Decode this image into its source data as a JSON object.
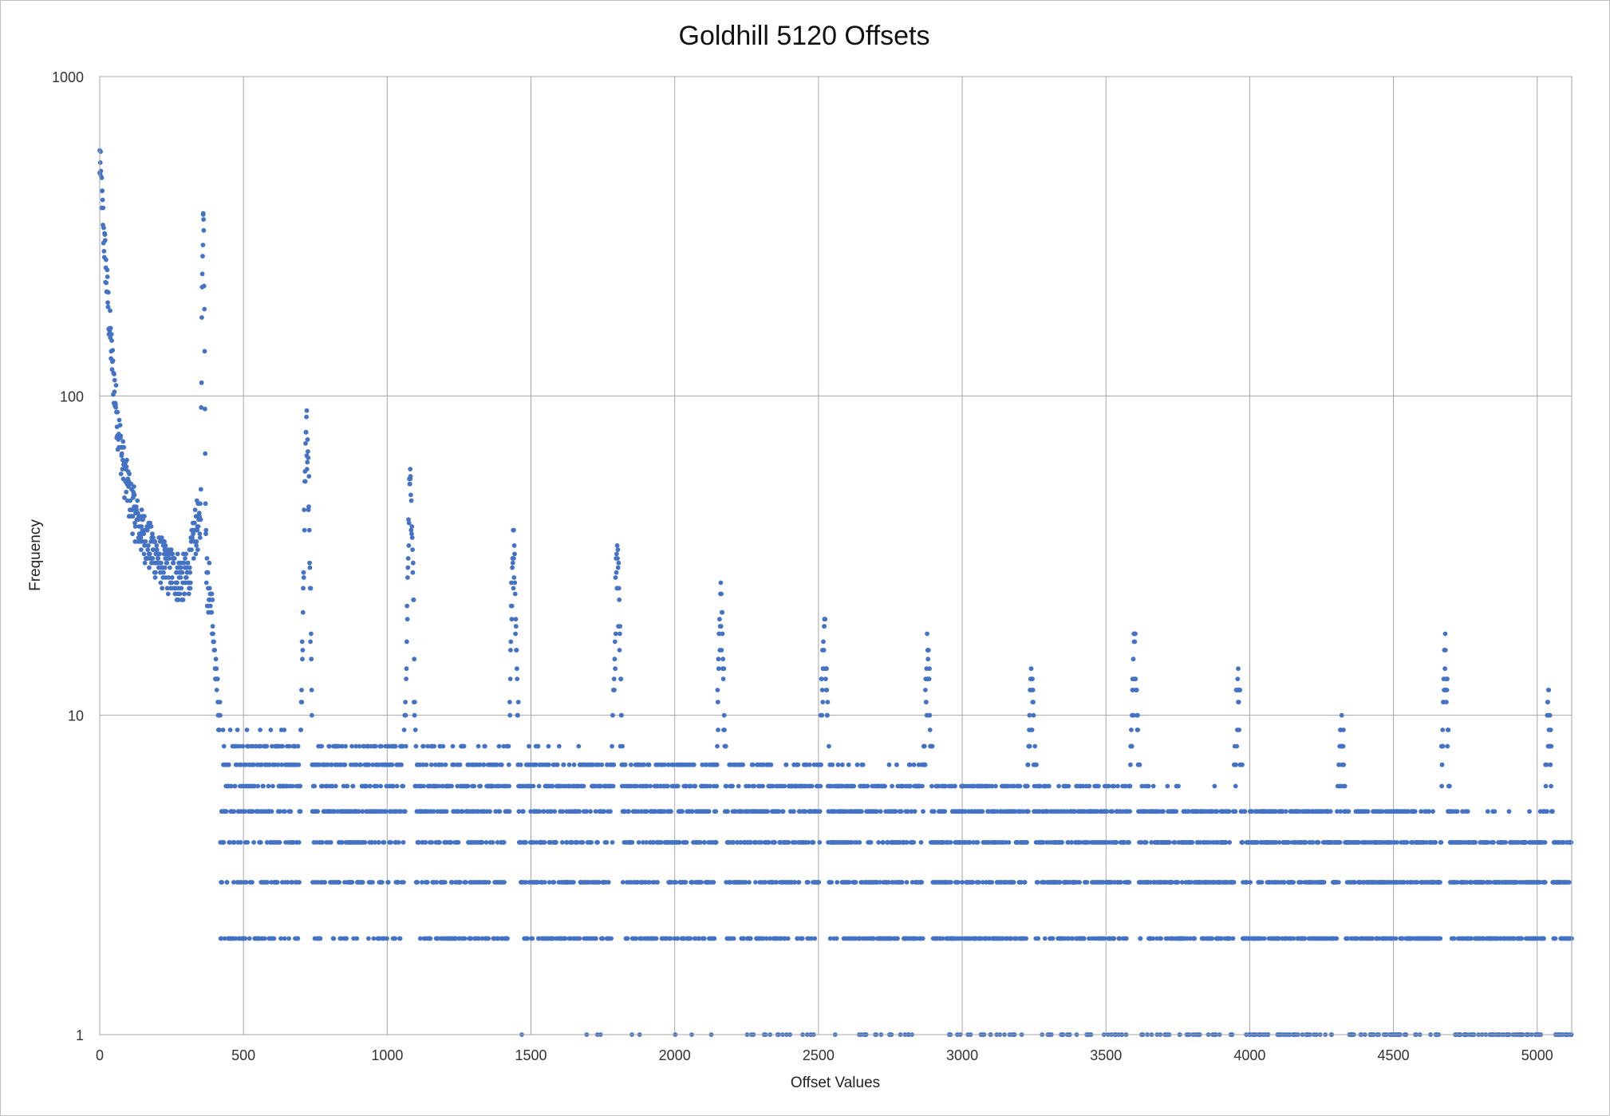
{
  "chart_data": {
    "type": "scatter",
    "title": "Goldhill 5120 Offsets",
    "xlabel": "Offset Values",
    "ylabel": "Frequency",
    "xlim": [
      0,
      5120
    ],
    "ylim": [
      1,
      1000
    ],
    "y_scale": "log",
    "grid": true,
    "legend": "none",
    "x_ticks": [
      "0",
      "500",
      "1000",
      "1500",
      "2000",
      "2500",
      "3000",
      "3500",
      "4000",
      "4500",
      "5000"
    ],
    "y_ticks": [
      "1",
      "10",
      "100",
      "1000"
    ],
    "marker_color": "#4472c4",
    "peaks": [
      {
        "x": 0,
        "y": 500
      },
      {
        "x": 360,
        "y": 370
      },
      {
        "x": 720,
        "y": 90
      },
      {
        "x": 1080,
        "y": 59
      },
      {
        "x": 1440,
        "y": 38
      },
      {
        "x": 1800,
        "y": 34
      },
      {
        "x": 2160,
        "y": 26
      },
      {
        "x": 2520,
        "y": 19
      },
      {
        "x": 2880,
        "y": 16
      },
      {
        "x": 3240,
        "y": 14
      },
      {
        "x": 3600,
        "y": 18
      },
      {
        "x": 3960,
        "y": 14
      },
      {
        "x": 4320,
        "y": 10
      },
      {
        "x": 4680,
        "y": 18
      },
      {
        "x": 5040,
        "y": 12
      }
    ],
    "baseline_levels": [
      1,
      2,
      3,
      4,
      5,
      6
    ]
  }
}
